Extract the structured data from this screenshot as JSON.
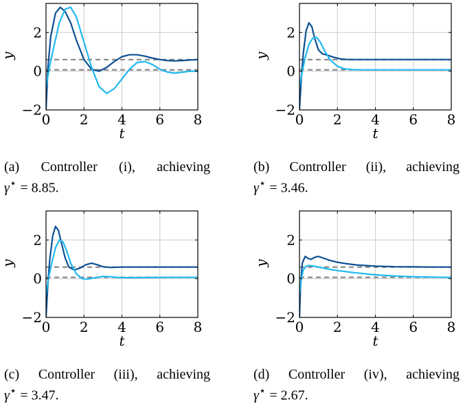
{
  "panels": [
    {
      "id": "a",
      "caption": {
        "label": "(a)",
        "word1": "Controller",
        "word2": "(i),",
        "word3": "achieving",
        "symbol": "γ",
        "star": "⋆",
        "eq": " = 8.85."
      }
    },
    {
      "id": "b",
      "caption": {
        "label": "(b)",
        "word1": "Controller",
        "word2": "(ii),",
        "word3": "achieving",
        "symbol": "γ",
        "star": "⋆",
        "eq": " = 3.46."
      }
    },
    {
      "id": "c",
      "caption": {
        "label": "(c)",
        "word1": "Controller",
        "word2": "(iii),",
        "word3": "achieving",
        "symbol": "γ",
        "star": "⋆",
        "eq": " = 3.47."
      }
    },
    {
      "id": "d",
      "caption": {
        "label": "(d)",
        "word1": "Controller",
        "word2": "(iv),",
        "word3": "achieving",
        "symbol": "γ",
        "star": "⋆",
        "eq": " = 2.67."
      }
    }
  ],
  "colors": {
    "dark_blue": "#0b4f93",
    "light_blue": "#1fb8ef",
    "reference_gray": "#7f7f7f",
    "grid": "#cccccc"
  },
  "chart_data": [
    {
      "type": "line",
      "xlabel": "t",
      "ylabel": "y",
      "xlim": [
        0,
        8
      ],
      "ylim": [
        -2,
        3.5
      ],
      "xticks": [
        0,
        2,
        4,
        6,
        8
      ],
      "yticks": [
        -2,
        0,
        2
      ],
      "xtick_labels": [
        "0",
        "2",
        "4",
        "6",
        "8"
      ],
      "ytick_labels": [
        "−2",
        "0",
        "2"
      ],
      "grid": true,
      "reference_lines": [
        0.6,
        0.07
      ],
      "series": [
        {
          "color": "#0b4f93",
          "x": [
            0,
            0.1,
            0.25,
            0.5,
            0.75,
            1.0,
            1.3,
            1.6,
            2.0,
            2.4,
            2.8,
            3.2,
            3.6,
            4.0,
            4.4,
            4.8,
            5.2,
            5.6,
            6.0,
            6.4,
            6.8,
            7.2,
            7.6,
            8.0
          ],
          "y": [
            -2.0,
            0.2,
            1.8,
            3.0,
            3.3,
            3.1,
            2.5,
            1.6,
            0.6,
            0.1,
            0.0,
            0.2,
            0.5,
            0.75,
            0.85,
            0.85,
            0.78,
            0.68,
            0.6,
            0.55,
            0.53,
            0.55,
            0.58,
            0.6
          ]
        },
        {
          "color": "#1fb8ef",
          "x": [
            0,
            0.2,
            0.4,
            0.7,
            1.0,
            1.3,
            1.6,
            2.0,
            2.4,
            2.8,
            3.2,
            3.6,
            4.0,
            4.4,
            4.8,
            5.2,
            5.6,
            6.0,
            6.4,
            6.8,
            7.2,
            7.6,
            8.0
          ],
          "y": [
            -0.8,
            0.3,
            1.2,
            2.5,
            3.2,
            3.3,
            2.8,
            1.5,
            0.2,
            -0.8,
            -1.15,
            -0.9,
            -0.4,
            0.1,
            0.45,
            0.5,
            0.35,
            0.1,
            -0.05,
            -0.1,
            -0.05,
            0.0,
            0.0
          ]
        }
      ]
    },
    {
      "type": "line",
      "xlabel": "t",
      "ylabel": "y",
      "xlim": [
        0,
        8
      ],
      "ylim": [
        -2,
        3.5
      ],
      "xticks": [
        0,
        2,
        4,
        6,
        8
      ],
      "yticks": [
        -2,
        0,
        2
      ],
      "xtick_labels": [
        "0",
        "2",
        "4",
        "6",
        "8"
      ],
      "ytick_labels": [
        "−2",
        "0",
        "2"
      ],
      "grid": true,
      "reference_lines": [
        0.6,
        0.07
      ],
      "series": [
        {
          "color": "#0b4f93",
          "x": [
            0,
            0.1,
            0.2,
            0.35,
            0.5,
            0.65,
            0.8,
            1.0,
            1.2,
            1.5,
            1.8,
            2.2,
            2.6,
            3.0,
            4.0,
            5.0,
            6.0,
            7.0,
            8.0
          ],
          "y": [
            -2.0,
            -0.3,
            0.9,
            2.1,
            2.5,
            2.3,
            1.7,
            1.1,
            0.9,
            0.82,
            0.72,
            0.63,
            0.6,
            0.6,
            0.6,
            0.6,
            0.6,
            0.6,
            0.6
          ]
        },
        {
          "color": "#1fb8ef",
          "x": [
            0,
            0.15,
            0.3,
            0.5,
            0.7,
            0.9,
            1.1,
            1.3,
            1.6,
            2.0,
            2.4,
            2.8,
            3.2,
            4.0,
            5.0,
            6.0,
            7.0,
            8.0
          ],
          "y": [
            -0.8,
            0.0,
            0.7,
            1.4,
            1.7,
            1.75,
            1.5,
            1.1,
            0.6,
            0.25,
            0.12,
            0.08,
            0.07,
            0.07,
            0.07,
            0.07,
            0.07,
            0.07
          ]
        }
      ]
    },
    {
      "type": "line",
      "xlabel": "t",
      "ylabel": "y",
      "xlim": [
        0,
        8
      ],
      "ylim": [
        -2,
        3.5
      ],
      "xticks": [
        0,
        2,
        4,
        6,
        8
      ],
      "yticks": [
        -2,
        0,
        2
      ],
      "xtick_labels": [
        "0",
        "2",
        "4",
        "6",
        "8"
      ],
      "ytick_labels": [
        "−2",
        "0",
        "2"
      ],
      "grid": true,
      "reference_lines": [
        0.6,
        0.07
      ],
      "series": [
        {
          "color": "#0b4f93",
          "x": [
            0,
            0.1,
            0.2,
            0.35,
            0.5,
            0.65,
            0.8,
            1.0,
            1.2,
            1.5,
            1.8,
            2.1,
            2.4,
            2.7,
            3.0,
            3.4,
            4.0,
            5.0,
            6.0,
            7.0,
            8.0
          ],
          "y": [
            -2.0,
            -0.2,
            1.0,
            2.2,
            2.7,
            2.5,
            1.9,
            1.1,
            0.6,
            0.45,
            0.55,
            0.72,
            0.8,
            0.72,
            0.62,
            0.58,
            0.6,
            0.6,
            0.6,
            0.6,
            0.6
          ]
        },
        {
          "color": "#1fb8ef",
          "x": [
            0,
            0.15,
            0.3,
            0.5,
            0.7,
            0.9,
            1.1,
            1.3,
            1.6,
            1.9,
            2.2,
            2.6,
            3.0,
            3.4,
            3.8,
            4.5,
            5.5,
            6.5,
            8.0
          ],
          "y": [
            -0.8,
            0.1,
            0.8,
            1.6,
            2.0,
            1.9,
            1.4,
            0.8,
            0.25,
            0.0,
            -0.02,
            0.05,
            0.12,
            0.1,
            0.06,
            0.05,
            0.06,
            0.07,
            0.07
          ]
        }
      ]
    },
    {
      "type": "line",
      "xlabel": "t",
      "ylabel": "y",
      "xlim": [
        0,
        8
      ],
      "ylim": [
        -2,
        3.5
      ],
      "xticks": [
        0,
        2,
        4,
        6,
        8
      ],
      "yticks": [
        -2,
        0,
        2
      ],
      "xtick_labels": [
        "0",
        "2",
        "4",
        "6",
        "8"
      ],
      "ytick_labels": [
        "−2",
        "0",
        "2"
      ],
      "grid": true,
      "reference_lines": [
        0.6,
        0.07
      ],
      "series": [
        {
          "color": "#0b4f93",
          "x": [
            0,
            0.05,
            0.15,
            0.3,
            0.45,
            0.6,
            0.8,
            1.0,
            1.3,
            1.6,
            2.0,
            2.5,
            3.0,
            4.0,
            5.0,
            6.0,
            7.0,
            8.0
          ],
          "y": [
            -2.0,
            -0.5,
            0.8,
            1.15,
            1.05,
            1.0,
            1.1,
            1.15,
            1.05,
            0.95,
            0.85,
            0.77,
            0.71,
            0.65,
            0.62,
            0.61,
            0.6,
            0.6
          ]
        },
        {
          "color": "#1fb8ef",
          "x": [
            0,
            0.1,
            0.2,
            0.35,
            0.5,
            0.7,
            1.0,
            1.5,
            2.0,
            3.0,
            4.0,
            5.0,
            6.0,
            7.0,
            8.0
          ],
          "y": [
            -0.8,
            0.0,
            0.45,
            0.65,
            0.68,
            0.66,
            0.6,
            0.5,
            0.42,
            0.3,
            0.2,
            0.14,
            0.1,
            0.08,
            0.07
          ]
        }
      ]
    }
  ]
}
